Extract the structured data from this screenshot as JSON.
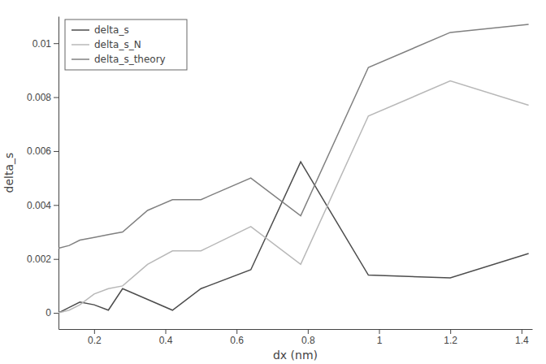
{
  "chart_data": {
    "type": "line",
    "x_label": "dx (nm)",
    "y_label": "delta_s",
    "x": [
      0.1,
      0.13,
      0.16,
      0.2,
      0.24,
      0.28,
      0.35,
      0.42,
      0.5,
      0.64,
      0.78,
      0.97,
      1.2,
      1.42
    ],
    "series": [
      {
        "name": "delta_s",
        "color": "#4d4d4d",
        "values": [
          0.0,
          0.0002,
          0.0004,
          0.0003,
          0.0001,
          0.0009,
          0.0005,
          0.0001,
          0.0009,
          0.0016,
          0.0056,
          0.0014,
          0.0013,
          0.0022
        ]
      },
      {
        "name": "delta_s_N",
        "color": "#b8b8b8",
        "values": [
          0.0,
          0.0001,
          0.0003,
          0.0007,
          0.0009,
          0.001,
          0.0018,
          0.0023,
          0.0023,
          0.0032,
          0.0018,
          0.0073,
          0.0086,
          0.0077
        ]
      },
      {
        "name": "delta_s_theory",
        "color": "#808080",
        "values": [
          0.0024,
          0.0025,
          0.0027,
          0.0028,
          0.0029,
          0.003,
          0.0038,
          0.0042,
          0.0042,
          0.005,
          0.0036,
          0.0091,
          0.0104,
          0.0107
        ]
      }
    ],
    "xlim": [
      0.1,
      1.43
    ],
    "xticks": [
      0.2,
      0.4,
      0.6,
      0.8,
      1,
      1.2,
      1.4
    ],
    "ylim": [
      -0.0006,
      0.011
    ],
    "yticks": [
      0,
      0.002,
      0.004,
      0.006,
      0.008,
      0.01
    ],
    "grid": false,
    "legend": "upper left"
  }
}
